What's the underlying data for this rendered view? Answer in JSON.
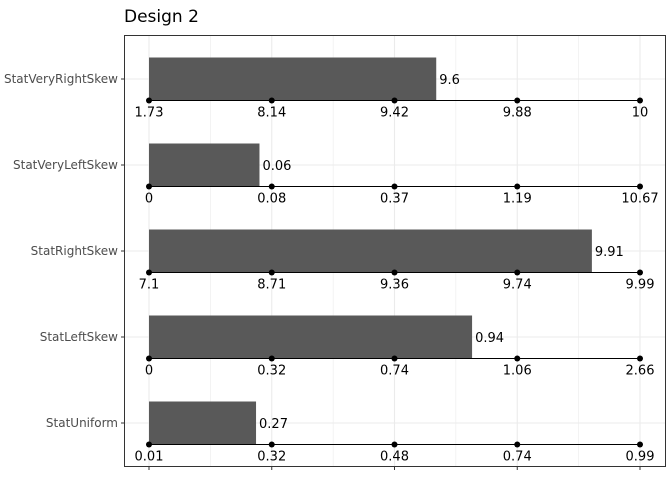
{
  "chart_data": {
    "type": "bar",
    "title": "Design 2",
    "xlabel": "",
    "ylabel": "",
    "orientation": "horizontal",
    "grid": true,
    "categories": [
      "StatVeryRightSkew",
      "StatVeryLeftSkew",
      "StatRightSkew",
      "StatLeftSkew",
      "StatUniform"
    ],
    "values": [
      9.6,
      0.06,
      9.91,
      0.94,
      0.27
    ],
    "value_labels": [
      "9.6",
      "0.06",
      "9.91",
      "0.94",
      "0.27"
    ],
    "bar_fill_fraction": [
      0.585,
      0.225,
      0.902,
      0.658,
      0.218
    ],
    "quantile_labels": [
      [
        "1.73",
        "8.14",
        "9.42",
        "9.88",
        "10"
      ],
      [
        "0",
        "0.08",
        "0.37",
        "1.19",
        "10.67"
      ],
      [
        "7.1",
        "8.71",
        "9.36",
        "9.74",
        "9.99"
      ],
      [
        "0",
        "0.32",
        "0.74",
        "1.06",
        "2.66"
      ],
      [
        "0.01",
        "0.32",
        "0.48",
        "0.74",
        "0.99"
      ]
    ],
    "bar_color": "#595959",
    "grid_color": "#ebebeb"
  }
}
